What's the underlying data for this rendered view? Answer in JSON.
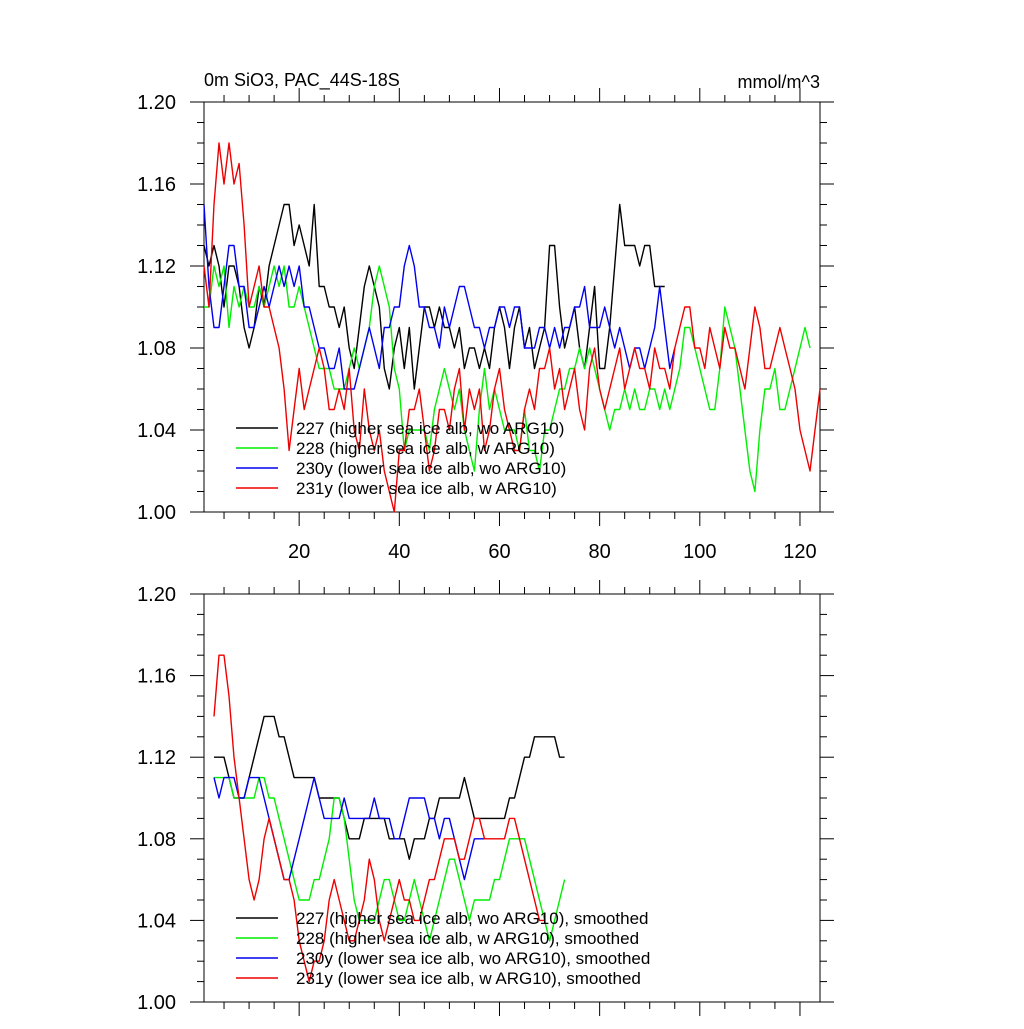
{
  "chart_data": [
    {
      "type": "line",
      "title": "0m SiO3, PAC_44S-18S",
      "units": "mmol/m^3",
      "xlim": [
        1,
        124
      ],
      "ylim": [
        1.0,
        1.2
      ],
      "x_ticks": [
        20,
        40,
        60,
        80,
        100,
        120
      ],
      "x_tick_labels": [
        "20",
        "40",
        "60",
        "80",
        "100",
        "120"
      ],
      "y_ticks": [
        1.0,
        1.04,
        1.08,
        1.12,
        1.16,
        1.2
      ],
      "y_tick_labels": [
        "1.00",
        "1.04",
        "1.08",
        "1.12",
        "1.16",
        "1.20"
      ],
      "legend_position": "bottom-left",
      "series": [
        {
          "name": "227 (higher sea ice alb, wo ARG10)",
          "color": "#000000",
          "x_start": 1,
          "values": [
            1.13,
            1.12,
            1.13,
            1.12,
            1.1,
            1.12,
            1.12,
            1.11,
            1.09,
            1.08,
            1.09,
            1.11,
            1.1,
            1.12,
            1.13,
            1.14,
            1.15,
            1.15,
            1.13,
            1.14,
            1.13,
            1.12,
            1.15,
            1.11,
            1.11,
            1.1,
            1.1,
            1.09,
            1.1,
            1.08,
            1.07,
            1.09,
            1.11,
            1.12,
            1.11,
            1.1,
            1.07,
            1.06,
            1.08,
            1.09,
            1.07,
            1.09,
            1.06,
            1.08,
            1.1,
            1.1,
            1.09,
            1.1,
            1.09,
            1.09,
            1.08,
            1.09,
            1.07,
            1.08,
            1.08,
            1.07,
            1.08,
            1.07,
            1.09,
            1.1,
            1.09,
            1.07,
            1.09,
            1.1,
            1.08,
            1.09,
            1.07,
            1.08,
            1.09,
            1.13,
            1.13,
            1.1,
            1.08,
            1.09,
            1.1,
            1.08,
            1.07,
            1.09,
            1.11,
            1.07,
            1.07,
            1.09,
            1.12,
            1.15,
            1.13,
            1.13,
            1.13,
            1.12,
            1.13,
            1.13,
            1.11,
            1.11,
            1.11
          ]
        },
        {
          "name": "228 (higher sea ice alb, w ARG10)",
          "color": "#00ee00",
          "x_start": 1,
          "values": [
            1.1,
            1.1,
            1.12,
            1.11,
            1.12,
            1.09,
            1.11,
            1.1,
            1.11,
            1.1,
            1.1,
            1.11,
            1.1,
            1.11,
            1.12,
            1.11,
            1.12,
            1.1,
            1.1,
            1.11,
            1.1,
            1.09,
            1.08,
            1.07,
            1.07,
            1.07,
            1.06,
            1.06,
            1.06,
            1.07,
            1.08,
            1.07,
            1.08,
            1.09,
            1.11,
            1.12,
            1.11,
            1.1,
            1.07,
            1.06,
            1.03,
            1.04,
            1.04,
            1.04,
            1.04,
            1.03,
            1.05,
            1.06,
            1.07,
            1.06,
            1.05,
            1.06,
            1.04,
            1.03,
            1.02,
            1.05,
            1.07,
            1.05,
            1.06,
            1.05,
            1.04,
            1.04,
            1.04,
            1.03,
            1.05,
            1.03,
            1.03,
            1.02,
            1.04,
            1.04,
            1.05,
            1.06,
            1.06,
            1.07,
            1.07,
            1.08,
            1.07,
            1.08,
            1.07,
            1.06,
            1.05,
            1.04,
            1.05,
            1.05,
            1.06,
            1.05,
            1.06,
            1.05,
            1.05,
            1.06,
            1.06,
            1.05,
            1.06,
            1.05,
            1.06,
            1.07,
            1.09,
            1.09,
            1.08,
            1.07,
            1.06,
            1.05,
            1.05,
            1.07,
            1.1,
            1.09,
            1.08,
            1.06,
            1.04,
            1.02,
            1.01,
            1.04,
            1.06,
            1.06,
            1.07,
            1.05,
            1.05,
            1.06,
            1.07,
            1.08,
            1.09,
            1.08
          ]
        },
        {
          "name": "230y (lower sea ice alb, wo ARG10)",
          "color": "#0000ee",
          "x_start": 1,
          "values": [
            1.15,
            1.11,
            1.09,
            1.09,
            1.11,
            1.13,
            1.13,
            1.11,
            1.11,
            1.09,
            1.09,
            1.1,
            1.11,
            1.1,
            1.11,
            1.12,
            1.11,
            1.12,
            1.11,
            1.12,
            1.1,
            1.1,
            1.09,
            1.08,
            1.08,
            1.07,
            1.07,
            1.08,
            1.06,
            1.06,
            1.06,
            1.07,
            1.08,
            1.09,
            1.08,
            1.07,
            1.09,
            1.09,
            1.1,
            1.1,
            1.12,
            1.13,
            1.12,
            1.1,
            1.1,
            1.09,
            1.09,
            1.08,
            1.1,
            1.09,
            1.1,
            1.11,
            1.11,
            1.1,
            1.09,
            1.09,
            1.08,
            1.09,
            1.09,
            1.1,
            1.1,
            1.09,
            1.1,
            1.1,
            1.08,
            1.08,
            1.08,
            1.09,
            1.09,
            1.08,
            1.09,
            1.08,
            1.09,
            1.09,
            1.1,
            1.1,
            1.11,
            1.09,
            1.09,
            1.09,
            1.1,
            1.09,
            1.08,
            1.09,
            1.08,
            1.07,
            1.08,
            1.08,
            1.07,
            1.08,
            1.09,
            1.11,
            1.09,
            1.07,
            1.08
          ]
        },
        {
          "name": "231y (lower sea ice alb, w ARG10)",
          "color": "#ee0000",
          "x_start": 1,
          "values": [
            1.12,
            1.1,
            1.15,
            1.18,
            1.16,
            1.18,
            1.16,
            1.17,
            1.14,
            1.1,
            1.11,
            1.12,
            1.1,
            1.1,
            1.09,
            1.08,
            1.06,
            1.03,
            1.05,
            1.07,
            1.05,
            1.06,
            1.07,
            1.08,
            1.07,
            1.05,
            1.05,
            1.06,
            1.05,
            1.07,
            1.04,
            1.03,
            1.06,
            1.04,
            1.03,
            1.04,
            1.02,
            1.01,
            1.0,
            1.03,
            1.03,
            1.05,
            1.05,
            1.06,
            1.04,
            1.02,
            1.03,
            1.05,
            1.05,
            1.04,
            1.06,
            1.07,
            1.04,
            1.06,
            1.05,
            1.06,
            1.03,
            1.04,
            1.06,
            1.07,
            1.05,
            1.04,
            1.03,
            1.03,
            1.05,
            1.06,
            1.05,
            1.07,
            1.07,
            1.08,
            1.06,
            1.07,
            1.05,
            1.06,
            1.07,
            1.05,
            1.04,
            1.07,
            1.08,
            1.06,
            1.05,
            1.06,
            1.07,
            1.08,
            1.06,
            1.07,
            1.08,
            1.07,
            1.07,
            1.06,
            1.08,
            1.07,
            1.07,
            1.06,
            1.08,
            1.09,
            1.1,
            1.1,
            1.08,
            1.08,
            1.07,
            1.09,
            1.08,
            1.07,
            1.09,
            1.08,
            1.08,
            1.07,
            1.06,
            1.08,
            1.1,
            1.09,
            1.07,
            1.07,
            1.08,
            1.09,
            1.08,
            1.07,
            1.06,
            1.04,
            1.03,
            1.02,
            1.04,
            1.06
          ]
        }
      ]
    },
    {
      "type": "line",
      "title": "",
      "xlim": [
        1,
        124
      ],
      "ylim": [
        1.0,
        1.2
      ],
      "x_ticks": [
        20,
        40,
        60,
        80,
        100,
        120
      ],
      "x_tick_labels": [],
      "y_ticks": [
        1.0,
        1.04,
        1.08,
        1.12,
        1.16,
        1.2
      ],
      "y_tick_labels": [
        "1.00",
        "1.04",
        "1.08",
        "1.12",
        "1.16",
        "1.20"
      ],
      "legend_position": "bottom-left",
      "series": [
        {
          "name": "227 (higher sea ice alb, wo ARG10), smoothed",
          "color": "#000000",
          "x_start": 3,
          "values": [
            1.12,
            1.12,
            1.12,
            1.11,
            1.1,
            1.1,
            1.1,
            1.11,
            1.12,
            1.13,
            1.14,
            1.14,
            1.14,
            1.13,
            1.13,
            1.12,
            1.11,
            1.11,
            1.11,
            1.11,
            1.11,
            1.1,
            1.1,
            1.1,
            1.1,
            1.1,
            1.09,
            1.08,
            1.08,
            1.08,
            1.09,
            1.09,
            1.09,
            1.09,
            1.09,
            1.08,
            1.08,
            1.08,
            1.08,
            1.07,
            1.08,
            1.08,
            1.08,
            1.09,
            1.09,
            1.1,
            1.1,
            1.1,
            1.1,
            1.1,
            1.11,
            1.1,
            1.09,
            1.09,
            1.09,
            1.09,
            1.09,
            1.09,
            1.09,
            1.1,
            1.1,
            1.11,
            1.12,
            1.12,
            1.13,
            1.13,
            1.13,
            1.13,
            1.13,
            1.12,
            1.12
          ]
        },
        {
          "name": "228 (higher sea ice alb, w ARG10), smoothed",
          "color": "#00ee00",
          "x_start": 3,
          "values": [
            1.11,
            1.11,
            1.11,
            1.11,
            1.1,
            1.1,
            1.1,
            1.1,
            1.1,
            1.11,
            1.11,
            1.1,
            1.1,
            1.09,
            1.08,
            1.07,
            1.06,
            1.05,
            1.05,
            1.05,
            1.06,
            1.06,
            1.07,
            1.08,
            1.1,
            1.1,
            1.09,
            1.07,
            1.05,
            1.04,
            1.04,
            1.04,
            1.04,
            1.05,
            1.06,
            1.06,
            1.05,
            1.04,
            1.04,
            1.05,
            1.06,
            1.05,
            1.04,
            1.03,
            1.04,
            1.05,
            1.06,
            1.07,
            1.07,
            1.06,
            1.05,
            1.04,
            1.05,
            1.05,
            1.05,
            1.05,
            1.06,
            1.06,
            1.07,
            1.08,
            1.08,
            1.08,
            1.08,
            1.07,
            1.06,
            1.05,
            1.04,
            1.03,
            1.04,
            1.05,
            1.06
          ]
        },
        {
          "name": "230y (lower sea ice alb, wo ARG10), smoothed",
          "color": "#0000ee",
          "x_start": 3,
          "values": [
            1.11,
            1.1,
            1.11,
            1.11,
            1.11,
            1.1,
            1.1,
            1.11,
            1.11,
            1.11,
            1.1,
            1.09,
            1.08,
            1.07,
            1.06,
            1.06,
            1.07,
            1.08,
            1.09,
            1.1,
            1.11,
            1.1,
            1.09,
            1.09,
            1.09,
            1.09,
            1.1,
            1.09,
            1.09,
            1.09,
            1.09,
            1.09,
            1.1,
            1.09,
            1.09,
            1.09,
            1.08,
            1.08,
            1.09,
            1.1,
            1.1,
            1.1,
            1.1,
            1.09,
            1.09,
            1.08,
            1.09,
            1.09,
            1.08,
            1.07,
            1.06,
            1.07,
            1.08,
            1.08,
            1.08
          ]
        },
        {
          "name": "231y (lower sea ice alb, w ARG10), smoothed",
          "color": "#ee0000",
          "x_start": 3,
          "values": [
            1.14,
            1.17,
            1.17,
            1.15,
            1.12,
            1.1,
            1.08,
            1.06,
            1.05,
            1.06,
            1.08,
            1.09,
            1.08,
            1.07,
            1.06,
            1.06,
            1.05,
            1.03,
            1.02,
            1.01,
            1.02,
            1.02,
            1.03,
            1.05,
            1.06,
            1.05,
            1.04,
            1.03,
            1.03,
            1.04,
            1.05,
            1.07,
            1.06,
            1.04,
            1.03,
            1.04,
            1.05,
            1.06,
            1.05,
            1.05,
            1.04,
            1.04,
            1.05,
            1.06,
            1.06,
            1.07,
            1.08,
            1.08,
            1.08,
            1.07,
            1.07,
            1.08,
            1.09,
            1.09,
            1.08,
            1.08,
            1.08,
            1.08,
            1.08,
            1.09,
            1.09,
            1.08,
            1.07,
            1.06,
            1.05,
            1.04,
            1.04
          ]
        }
      ]
    }
  ]
}
